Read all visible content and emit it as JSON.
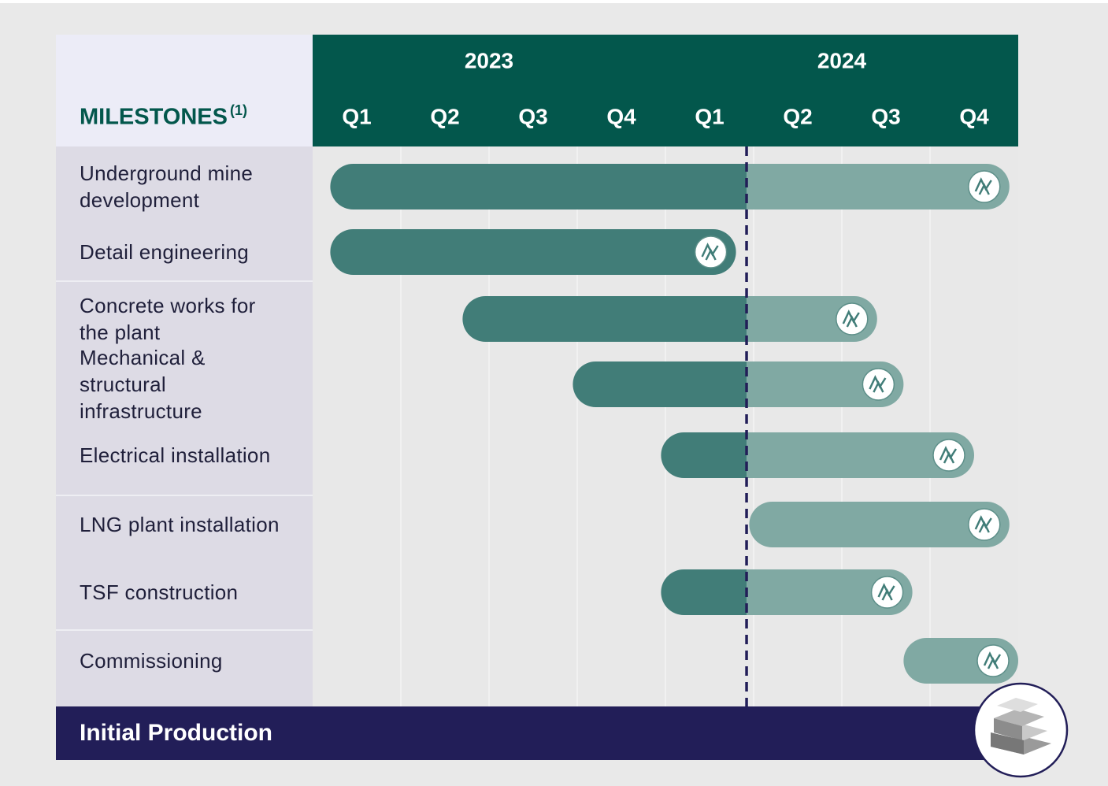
{
  "chart_data": {
    "type": "gantt",
    "title": "MILESTONES",
    "title_note": "(1)",
    "years": [
      {
        "label": "2023",
        "quarters": [
          "Q1",
          "Q2",
          "Q3",
          "Q4"
        ]
      },
      {
        "label": "2024",
        "quarters": [
          "Q1",
          "Q2",
          "Q3",
          "Q4"
        ]
      }
    ],
    "xlim": [
      0,
      8
    ],
    "categories": [
      "Underground mine\ndevelopment",
      "Detail engineering",
      "Concrete works for\nthe plant",
      "Mechanical &\nstructural\ninfrastructure",
      "Electrical installation",
      "LNG plant installation",
      "TSF construction",
      "Commissioning"
    ],
    "start": [
      0.2,
      0.2,
      1.7,
      2.95,
      3.95,
      4.95,
      3.95,
      6.7
    ],
    "end": [
      7.9,
      4.8,
      6.4,
      6.7,
      7.5,
      7.9,
      6.8,
      8.0
    ],
    "today": 4.92,
    "done_color": "#417d78",
    "planned_color": "#80a9a3",
    "footer": "Initial Production"
  }
}
